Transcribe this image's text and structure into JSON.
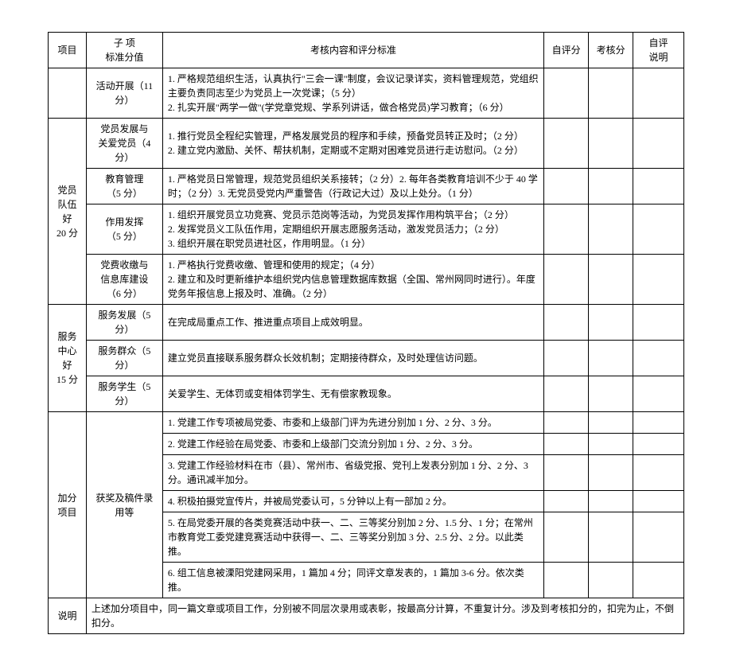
{
  "header": {
    "col1": "项目",
    "col2_line1": "子  项",
    "col2_line2": "标准分值",
    "col3": "考核内容和评分标准",
    "col4": "自评分",
    "col5": "考核分",
    "col6_line1": "自评",
    "col6_line2": "说明"
  },
  "r01": {
    "sub": "活动开展（11 分）",
    "content": "1. 严格规范组织生活，认真执行\"三会一课\"制度，会议记录详实，资料管理规范，党组织主要负责同志至少为党员上一次党课；（5 分）\n2. 扎实开展\"两学一做\"(学党章党规、学系列讲话，做合格党员)学习教育；（6 分）"
  },
  "group2": {
    "project_line1": "党员",
    "project_line2": "队伍好",
    "project_line3": "20 分"
  },
  "r02": {
    "sub": "党员发展与\n关爱党员（4 分）",
    "content": "1. 推行党员全程纪实管理，严格发展党员的程序和手续，预备党员转正及时；（2 分）\n2. 建立党内激励、关怀、帮扶机制，定期或不定期对困难党员进行走访慰问。（2 分）"
  },
  "r03": {
    "sub": "教育管理\n（5 分）",
    "content": "1. 严格党员日常管理，规范党员组织关系接转；（2 分）2. 每年各类教育培训不少于 40 学时；（2 分）3. 无党员受党内严重警告（行政记大过）及以上处分。（1 分）"
  },
  "r04": {
    "sub": "作用发挥\n（5 分）",
    "content": "1. 组织开展党员立功竞赛、党员示范岗等活动，为党员发挥作用构筑平台；（2 分）\n2. 发挥党员义工队伍作用，定期组织开展志愿服务活动，激发党员活力；（2 分）\n3. 组织开展在职党员进社区，作用明显。（1 分）"
  },
  "r05": {
    "sub": "党费收缴与\n信息库建设\n（6 分）",
    "content": "1. 严格执行党费收缴、管理和使用的规定；（4 分）\n2. 建立和及时更新维护本组织党内信息管理数据库数据（全国、常州网同时进行）。年度党务年报信息上报及时、准确。（2 分）"
  },
  "group3": {
    "project_line1": "服务",
    "project_line2": "中心好",
    "project_line3": "15 分"
  },
  "r06": {
    "sub": "服务发展（5 分）",
    "content": "在完成局重点工作、推进重点项目上成效明显。"
  },
  "r07": {
    "sub": "服务群众（5 分）",
    "content": "建立党员直接联系服务群众长效机制；定期接待群众，及时处理信访问题。"
  },
  "r08": {
    "sub": "服务学生（5 分）",
    "content": "关爱学生、无体罚或变相体罚学生、无有偿家教现象。"
  },
  "group4": {
    "project": "加分项目",
    "sub": "获奖及稿件录用等"
  },
  "r09": {
    "content": "1. 党建工作专项被局党委、市委和上级部门评为先进分别加 1 分、2 分、3 分。"
  },
  "r10": {
    "content": "2. 党建工作经验在局党委、市委和上级部门交流分别加 1 分、2 分、3 分。"
  },
  "r11": {
    "content": "3. 党建工作经验材料在市（县）、常州市、省级党报、党刊上发表分别加 1 分、2 分、3 分。通讯减半加分。"
  },
  "r12": {
    "content": "4. 积极拍摄党宣传片，并被局党委认可，5 分钟以上有一部加 2 分。"
  },
  "r13": {
    "content": "5. 在局党委开展的各类竞赛活动中获一、二、三等奖分别加 2 分、1.5 分、1 分；在常州市教育党工委党建竞赛活动中获得一、二、三等奖分别加 3 分、2.5 分、2 分。以此类推。"
  },
  "r14": {
    "content": "6. 组工信息被溧阳党建网采用，1 篇加 4 分；同评文章发表的，1 篇加 3-6 分。依次类推。"
  },
  "note": {
    "label": "说明",
    "content": "上述加分项目中，同一篇文章或项目工作，分别被不同层次录用或表彰，按最高分计算，不重复计分。涉及到考核扣分的，扣完为止，不倒扣分。"
  }
}
